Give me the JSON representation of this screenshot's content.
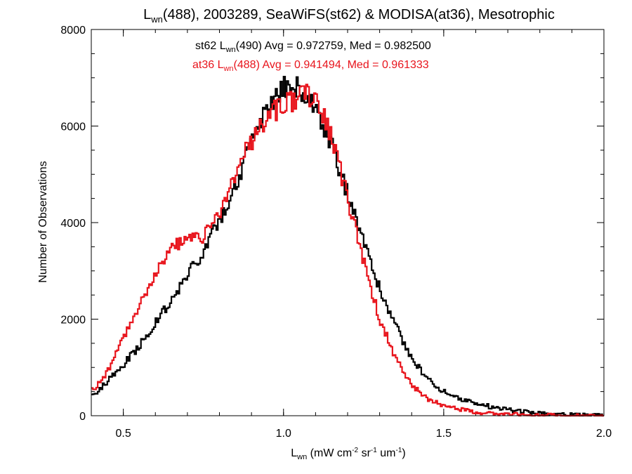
{
  "chart_data": {
    "type": "line",
    "step": true,
    "title": {
      "main": "L",
      "sub": "wn",
      "rest": "(488), 2003289, SeaWiFS(st62) & MODISA(at36), Mesotrophic"
    },
    "xlabel": {
      "main": "L",
      "sub": "wn",
      "pre_units": " (mW cm",
      "sup1": "-2",
      "mid_units": " sr",
      "sup2": "-1",
      "post_units": " um",
      "sup3": "-1",
      "close": ")"
    },
    "ylabel": "Number of Observations",
    "xlim": [
      0.4,
      2.0
    ],
    "ylim": [
      0,
      8000
    ],
    "xticks": [
      0.5,
      1.0,
      1.5,
      2.0
    ],
    "xtick_labels": [
      "0.5",
      "1.0",
      "1.5",
      "2.0"
    ],
    "yticks": [
      0,
      2000,
      4000,
      6000,
      8000
    ],
    "ytick_labels": [
      "0",
      "2000",
      "4000",
      "6000",
      "8000"
    ],
    "grid": false,
    "series": [
      {
        "color": "#000000",
        "annotation": {
          "pre": "st62 L",
          "sub": "wn",
          "post": "(490) Avg = 0.972759, Med = 0.982500"
        },
        "x": [
          0.4,
          0.45,
          0.5,
          0.55,
          0.6,
          0.65,
          0.7,
          0.75,
          0.8,
          0.85,
          0.9,
          0.95,
          1.0,
          1.05,
          1.1,
          1.15,
          1.2,
          1.25,
          1.3,
          1.35,
          1.4,
          1.45,
          1.5,
          1.55,
          1.6,
          1.65,
          1.7,
          1.75,
          1.8,
          1.85,
          1.9,
          1.95,
          2.0
        ],
        "y": [
          400,
          700,
          1050,
          1450,
          1900,
          2400,
          2900,
          3400,
          4050,
          4800,
          5600,
          6350,
          6850,
          6800,
          6400,
          5600,
          4600,
          3600,
          2650,
          1850,
          1200,
          750,
          500,
          360,
          260,
          180,
          120,
          80,
          50,
          30,
          20,
          10,
          0
        ]
      },
      {
        "color": "#e8141c",
        "annotation": {
          "pre": "at36 L",
          "sub": "wn",
          "post": "(488) Avg = 0.941494, Med = 0.961333"
        },
        "x": [
          0.4,
          0.45,
          0.5,
          0.55,
          0.6,
          0.65,
          0.7,
          0.75,
          0.8,
          0.85,
          0.9,
          0.95,
          1.0,
          1.05,
          1.1,
          1.15,
          1.2,
          1.25,
          1.3,
          1.35,
          1.4,
          1.45,
          1.5,
          1.55,
          1.6,
          1.65,
          1.7,
          1.75,
          1.8,
          1.85,
          1.9,
          1.95,
          2.0
        ],
        "y": [
          500,
          900,
          1600,
          2300,
          2950,
          3500,
          3650,
          3700,
          4200,
          5000,
          5700,
          6200,
          6450,
          6600,
          6650,
          5800,
          4500,
          3200,
          2000,
          1200,
          650,
          350,
          200,
          130,
          80,
          50,
          30,
          20,
          10,
          5,
          3,
          2,
          0
        ]
      }
    ]
  }
}
